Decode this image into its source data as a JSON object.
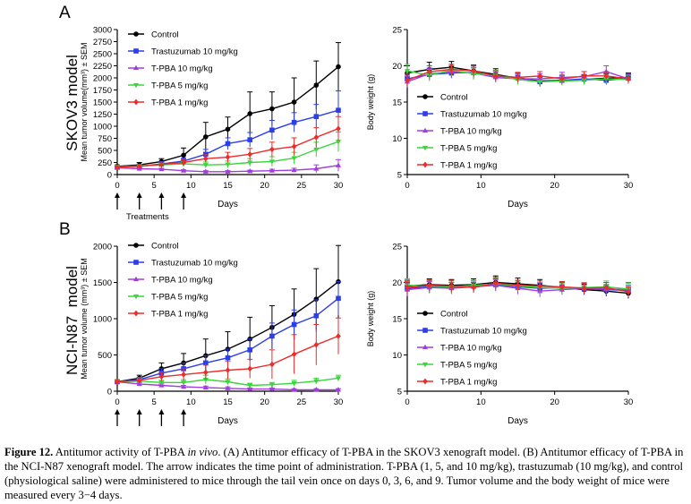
{
  "figure": {
    "panel_labels": [
      "A",
      "B"
    ],
    "row_labels": [
      "SKOV3 model",
      "NCI-N87  model"
    ],
    "treatments_label": "Treatments",
    "treatment_days": [
      0,
      3,
      6,
      9
    ]
  },
  "caption": {
    "label": "Figure 12.",
    "text_before_italic": " Antitumor activity of T-PBA ",
    "italic": "in vivo",
    "text_after_italic": ". (A) Antitumor efficacy of T-PBA in the SKOV3 xenograft model. (B) Antitumor efficacy of T-PBA in the NCI-N87 xenograft model. The arrow indicates the time point of administration. T-PBA (1, 5, and 10 mg/kg), trastuzumab (10 mg/kg), and control (physiological saline) were administered to mice through the tail vein once on days 0, 3, 6, and 9. Tumor volume and the body weight of mice were measured every 3−4 days."
  },
  "series_styles": [
    {
      "name": "Control",
      "color": "#000000",
      "marker": "circle"
    },
    {
      "name": "Trastuzumab 10 mg/kg",
      "color": "#2c3ee8",
      "marker": "square"
    },
    {
      "name": "T-PBA 10 mg/kg",
      "color": "#a23be0",
      "marker": "triangle-up"
    },
    {
      "name": "T-PBA 5 mg/kg",
      "color": "#3ad63a",
      "marker": "triangle-down"
    },
    {
      "name": "T-PBA 1 mg/kg",
      "color": "#ec2b2b",
      "marker": "diamond"
    }
  ],
  "chart_data": [
    {
      "type": "line",
      "id": "tumor-a",
      "xlabel": "Days",
      "ylabel": "Mean tumor volume(mm³) ± SEM",
      "xlim": [
        0,
        30
      ],
      "ylim": [
        0,
        3000
      ],
      "xticks": [
        0,
        5,
        10,
        15,
        20,
        25,
        30
      ],
      "yticks": [
        0,
        250,
        500,
        750,
        1000,
        1250,
        1500,
        1750,
        2000,
        2250,
        2500,
        2750,
        3000
      ],
      "legend": "top-left",
      "x": [
        0,
        3,
        6,
        9,
        12,
        15,
        18,
        21,
        24,
        27,
        30
      ],
      "series": [
        {
          "name": "Control",
          "values": [
            170,
            200,
            270,
            400,
            780,
            940,
            1260,
            1360,
            1500,
            1850,
            2230
          ],
          "err": [
            30,
            50,
            60,
            150,
            300,
            250,
            450,
            350,
            500,
            500,
            500
          ]
        },
        {
          "name": "Trastuzumab 10 mg/kg",
          "values": [
            150,
            170,
            220,
            280,
            420,
            640,
            720,
            920,
            1080,
            1200,
            1330
          ],
          "err": [
            30,
            40,
            50,
            60,
            100,
            120,
            150,
            200,
            200,
            250,
            400
          ]
        },
        {
          "name": "T-PBA 10 mg/kg",
          "values": [
            140,
            120,
            110,
            80,
            60,
            60,
            70,
            80,
            90,
            120,
            190
          ],
          "err": [
            20,
            20,
            20,
            20,
            20,
            20,
            20,
            30,
            40,
            80,
            120
          ]
        },
        {
          "name": "T-PBA 5 mg/kg",
          "values": [
            160,
            180,
            200,
            220,
            200,
            210,
            250,
            270,
            340,
            520,
            680
          ],
          "err": [
            30,
            30,
            40,
            50,
            60,
            70,
            80,
            100,
            120,
            150,
            200
          ]
        },
        {
          "name": "T-PBA 1 mg/kg",
          "values": [
            150,
            170,
            210,
            250,
            330,
            360,
            420,
            520,
            580,
            770,
            950
          ],
          "err": [
            30,
            40,
            40,
            60,
            80,
            100,
            120,
            150,
            180,
            200,
            250
          ]
        }
      ]
    },
    {
      "type": "line",
      "id": "weight-a",
      "xlabel": "Days",
      "ylabel": "Body weight (g)",
      "xlim": [
        0,
        30
      ],
      "ylim": [
        5,
        25
      ],
      "xticks": [
        0,
        10,
        20,
        30
      ],
      "yticks": [
        5,
        10,
        15,
        20,
        25
      ],
      "legend": "bottom-left",
      "x": [
        0,
        3,
        6,
        9,
        12,
        15,
        18,
        21,
        24,
        27,
        30
      ],
      "series": [
        {
          "name": "Control",
          "values": [
            19.0,
            19.5,
            19.8,
            19.3,
            18.8,
            18.3,
            17.9,
            18.0,
            18.1,
            18.3,
            18.4
          ],
          "err": [
            1.0,
            1.0,
            0.8,
            0.8,
            0.8,
            0.7,
            0.7,
            0.6,
            0.6,
            0.6,
            0.6
          ]
        },
        {
          "name": "Trastuzumab 10 mg/kg",
          "values": [
            18.2,
            18.8,
            19.0,
            19.1,
            18.6,
            18.4,
            17.8,
            18.0,
            18.2,
            18.0,
            18.3
          ],
          "err": [
            0.8,
            0.8,
            0.7,
            0.7,
            0.7,
            0.6,
            0.6,
            0.6,
            0.6,
            0.6,
            0.6
          ]
        },
        {
          "name": "T-PBA 10 mg/kg",
          "values": [
            17.8,
            18.9,
            19.2,
            19.0,
            18.4,
            18.2,
            18.2,
            18.4,
            18.5,
            19.2,
            18.2
          ],
          "err": [
            0.8,
            0.8,
            0.8,
            0.8,
            0.7,
            0.7,
            0.7,
            0.7,
            0.7,
            0.8,
            0.6
          ]
        },
        {
          "name": "T-PBA 5 mg/kg",
          "values": [
            19.3,
            18.7,
            19.4,
            18.9,
            18.7,
            18.1,
            17.8,
            17.9,
            18.0,
            18.2,
            18.1
          ],
          "err": [
            0.9,
            0.8,
            0.8,
            0.8,
            0.7,
            0.7,
            0.7,
            0.6,
            0.6,
            0.6,
            0.6
          ]
        },
        {
          "name": "T-PBA 1 mg/kg",
          "values": [
            18.0,
            19.2,
            19.5,
            19.3,
            18.6,
            18.4,
            18.6,
            18.2,
            18.6,
            18.6,
            18.2
          ],
          "err": [
            0.8,
            0.8,
            0.7,
            0.7,
            0.7,
            0.7,
            0.6,
            0.6,
            0.6,
            0.6,
            0.6
          ]
        }
      ]
    },
    {
      "type": "line",
      "id": "tumor-b",
      "xlabel": "Days",
      "ylabel": "Mean tumor volume (mm³) ± SEM",
      "xlim": [
        0,
        30
      ],
      "ylim": [
        0,
        2000
      ],
      "xticks": [
        0,
        5,
        10,
        15,
        20,
        25,
        30
      ],
      "yticks": [
        0,
        500,
        1000,
        1500,
        2000
      ],
      "legend": "top-left",
      "x": [
        0,
        3,
        6,
        9,
        12,
        15,
        18,
        21,
        24,
        27,
        30
      ],
      "series": [
        {
          "name": "Control",
          "values": [
            130,
            180,
            310,
            390,
            490,
            580,
            720,
            880,
            1060,
            1270,
            1510
          ],
          "err": [
            30,
            40,
            80,
            130,
            230,
            240,
            300,
            300,
            350,
            420,
            500
          ]
        },
        {
          "name": "Trastuzumab 10 mg/kg",
          "values": [
            130,
            160,
            250,
            310,
            390,
            460,
            570,
            760,
            920,
            1040,
            1280
          ],
          "err": [
            30,
            30,
            60,
            80,
            100,
            120,
            150,
            180,
            200,
            220,
            230
          ]
        },
        {
          "name": "T-PBA 10 mg/kg",
          "values": [
            130,
            100,
            80,
            60,
            50,
            40,
            30,
            30,
            20,
            20,
            20
          ],
          "err": [
            20,
            20,
            20,
            20,
            20,
            20,
            15,
            15,
            15,
            15,
            15
          ]
        },
        {
          "name": "T-PBA 5 mg/kg",
          "values": [
            130,
            140,
            120,
            120,
            160,
            130,
            80,
            90,
            110,
            140,
            180
          ],
          "err": [
            30,
            30,
            30,
            40,
            60,
            40,
            30,
            30,
            40,
            40,
            40
          ]
        },
        {
          "name": "T-PBA 1 mg/kg",
          "values": [
            130,
            150,
            200,
            230,
            260,
            290,
            310,
            370,
            510,
            640,
            760
          ],
          "err": [
            30,
            40,
            60,
            80,
            100,
            120,
            130,
            200,
            270,
            280,
            250
          ]
        }
      ]
    },
    {
      "type": "line",
      "id": "weight-b",
      "xlabel": "Days",
      "ylabel": "Body weight (g)",
      "xlim": [
        0,
        30
      ],
      "ylim": [
        5,
        25
      ],
      "xticks": [
        0,
        10,
        20,
        30
      ],
      "yticks": [
        5,
        10,
        15,
        20,
        25
      ],
      "legend": "bottom-left",
      "x": [
        0,
        3,
        6,
        9,
        12,
        15,
        18,
        21,
        24,
        27,
        30
      ],
      "series": [
        {
          "name": "Control",
          "values": [
            19.5,
            19.7,
            19.6,
            19.7,
            20.0,
            19.8,
            19.6,
            19.3,
            19.0,
            18.8,
            18.5
          ],
          "err": [
            0.8,
            0.8,
            0.8,
            0.8,
            0.9,
            0.8,
            0.8,
            0.8,
            0.7,
            0.7,
            0.7
          ]
        },
        {
          "name": "Trastuzumab 10 mg/kg",
          "values": [
            19.2,
            19.4,
            19.3,
            19.5,
            19.7,
            19.4,
            19.2,
            19.3,
            19.1,
            19.0,
            18.9
          ],
          "err": [
            0.8,
            0.8,
            0.7,
            0.7,
            0.8,
            0.8,
            0.7,
            0.7,
            0.7,
            0.7,
            0.7
          ]
        },
        {
          "name": "T-PBA 10 mg/kg",
          "values": [
            19.0,
            19.3,
            19.2,
            19.4,
            19.6,
            19.2,
            18.8,
            19.0,
            19.2,
            19.1,
            19.0
          ],
          "err": [
            0.9,
            0.8,
            0.8,
            0.8,
            0.8,
            0.8,
            0.8,
            0.7,
            0.8,
            0.9,
            1.0
          ]
        },
        {
          "name": "T-PBA 5 mg/kg",
          "values": [
            19.6,
            19.5,
            19.4,
            19.6,
            19.8,
            19.5,
            19.3,
            19.2,
            19.3,
            19.4,
            19.1
          ],
          "err": [
            0.9,
            0.8,
            0.8,
            0.7,
            0.8,
            0.7,
            0.7,
            0.7,
            0.7,
            0.8,
            0.8
          ]
        },
        {
          "name": "T-PBA 1 mg/kg",
          "values": [
            19.3,
            19.6,
            19.5,
            19.3,
            19.9,
            19.6,
            19.5,
            19.4,
            19.2,
            19.3,
            18.7
          ],
          "err": [
            0.8,
            0.8,
            0.8,
            0.7,
            0.8,
            0.7,
            0.7,
            0.7,
            0.7,
            0.7,
            0.7
          ]
        }
      ]
    }
  ]
}
